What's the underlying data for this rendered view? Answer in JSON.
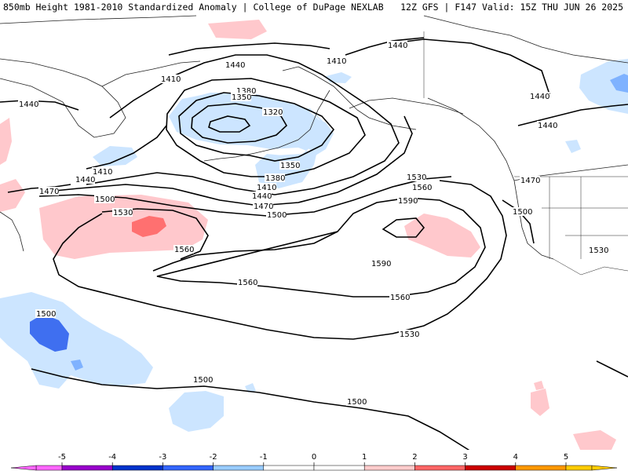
{
  "header": {
    "title": "850mb Height 1981-2010 Standardized Anomaly | College of DuPage NEXLAB",
    "run_info": "12Z GFS | F147 Valid: 15Z THU JUN 26 2025"
  },
  "contour_labels": {
    "l1440_a": "1440",
    "l1440_b": "1440",
    "l1440_c": "1440",
    "l1440_d": "1440",
    "l1440_e": "1440",
    "l1440_f": "1440",
    "l1440_g": "1440",
    "l1410_a": "1410",
    "l1410_b": "1410",
    "l1410_c": "1410",
    "l1410_d": "1410",
    "l1380_a": "1380",
    "l1380_b": "1380",
    "l1350_a": "1350",
    "l1350_b": "1350",
    "l1320": "1320",
    "l1470_a": "1470",
    "l1470_b": "1470",
    "l1470_c": "1470",
    "l1500_a": "1500",
    "l1500_b": "1500",
    "l1500_c": "1500",
    "l1500_d": "1500",
    "l1500_e": "1500",
    "l1500_f": "1500",
    "l1530_a": "1530",
    "l1530_b": "1530",
    "l1530_c": "1530",
    "l1530_d": "1530",
    "l1560_a": "1560",
    "l1560_b": "1560",
    "l1560_c": "1560",
    "l1560_d": "1560",
    "l1590_a": "1590",
    "l1590_b": "1590"
  },
  "colorbar": {
    "ticks": [
      "-5",
      "-4",
      "-3",
      "-2",
      "-1",
      "0",
      "1",
      "2",
      "3",
      "4",
      "5"
    ],
    "colors": [
      "#ff66ff",
      "#9900cc",
      "#0033cc",
      "#3366ff",
      "#99ccff",
      "#ffffff",
      "#ffffff",
      "#ffcccc",
      "#ff6666",
      "#cc0000",
      "#ff9900",
      "#ffcc00"
    ]
  },
  "anomaly_colors": {
    "neg1": "#cce5ff",
    "neg2": "#7fb2ff",
    "neg3": "#3f6ff0",
    "neg4": "#1a3ab0",
    "pos1": "#ffc8cc",
    "pos2": "#ff7070"
  },
  "icons": {
    "min_arrow": "left-arrow-magenta",
    "max_arrow": "right-arrow-orange"
  }
}
